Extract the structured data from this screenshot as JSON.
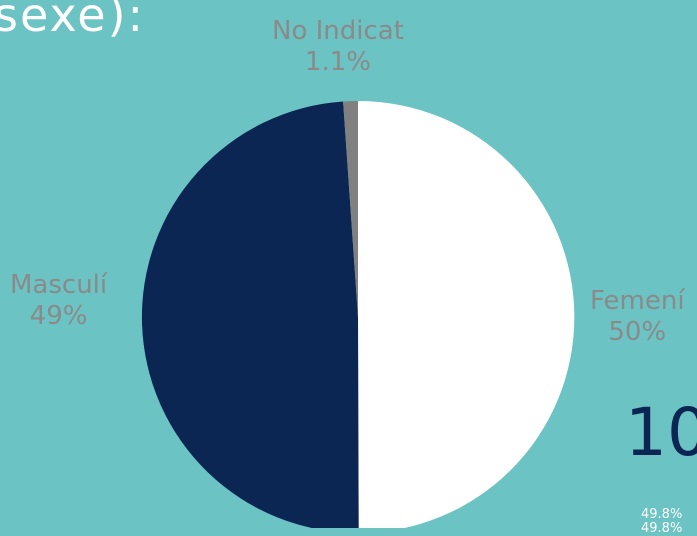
{
  "title_fragment": "sexe):",
  "big_number_fragment": "10",
  "side_stats": [
    "49.8%",
    "49.8%"
  ],
  "colors": {
    "background": "#6cc3c3",
    "femeni": "#ffffff",
    "masculi": "#0c2654",
    "no_indicat": "#808080",
    "label_text": "#8a8a8a"
  },
  "chart_data": {
    "type": "pie",
    "slices": [
      {
        "name": "Femení",
        "value": 50,
        "label": "50%",
        "color": "#ffffff"
      },
      {
        "name": "Masculí",
        "value": 49,
        "label": "49%",
        "color": "#0c2654"
      },
      {
        "name": "No Indicat",
        "value": 1.1,
        "label": "1.1%",
        "color": "#808080"
      }
    ],
    "start": "12 o'clock",
    "direction": "clockwise"
  }
}
